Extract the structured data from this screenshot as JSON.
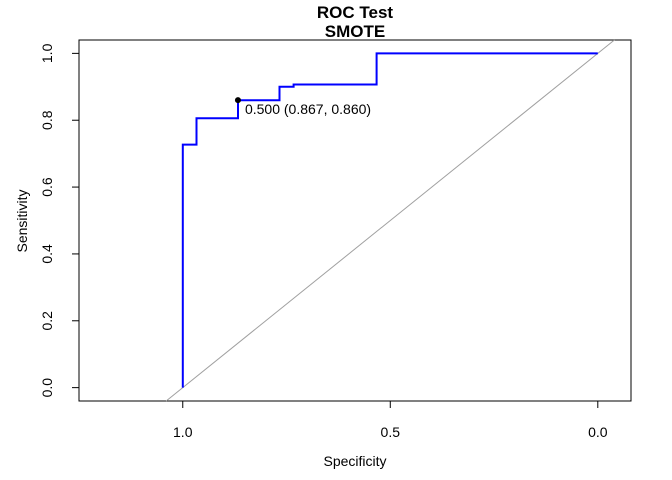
{
  "chart_data": {
    "type": "line",
    "title": "ROC Test",
    "subtitle": "SMOTE",
    "xlabel": "Specificity",
    "ylabel": "Sensitivity",
    "x_reversed": true,
    "xlim": [
      1.25,
      -0.08
    ],
    "ylim": [
      -0.04,
      1.04
    ],
    "x_ticks": [
      1.0,
      0.5,
      0.0
    ],
    "x_tick_labels": [
      "1.0",
      "0.5",
      "0.0"
    ],
    "y_ticks": [
      0.0,
      0.2,
      0.4,
      0.6,
      0.8,
      1.0
    ],
    "y_tick_labels": [
      "0.0",
      "0.2",
      "0.4",
      "0.6",
      "0.8",
      "1.0"
    ],
    "grid": false,
    "series": [
      {
        "color": "#0000ff",
        "points": [
          {
            "specificity": 1.0,
            "sensitivity": 0.0
          },
          {
            "specificity": 1.0,
            "sensitivity": 0.727
          },
          {
            "specificity": 0.967,
            "sensitivity": 0.727
          },
          {
            "specificity": 0.967,
            "sensitivity": 0.806
          },
          {
            "specificity": 0.867,
            "sensitivity": 0.806
          },
          {
            "specificity": 0.867,
            "sensitivity": 0.86
          },
          {
            "specificity": 0.767,
            "sensitivity": 0.86
          },
          {
            "specificity": 0.767,
            "sensitivity": 0.9
          },
          {
            "specificity": 0.733,
            "sensitivity": 0.9
          },
          {
            "specificity": 0.733,
            "sensitivity": 0.907
          },
          {
            "specificity": 0.533,
            "sensitivity": 0.907
          },
          {
            "specificity": 0.533,
            "sensitivity": 1.0
          },
          {
            "specificity": 0.0,
            "sensitivity": 1.0
          }
        ]
      }
    ],
    "reference_line": {
      "color": "#a0a0a0",
      "from": [
        1.04,
        -0.04
      ],
      "to": [
        -0.04,
        1.04
      ]
    },
    "annotation": {
      "label": "0.500 (0.867, 0.860)",
      "specificity": 0.867,
      "sensitivity": 0.86
    }
  }
}
